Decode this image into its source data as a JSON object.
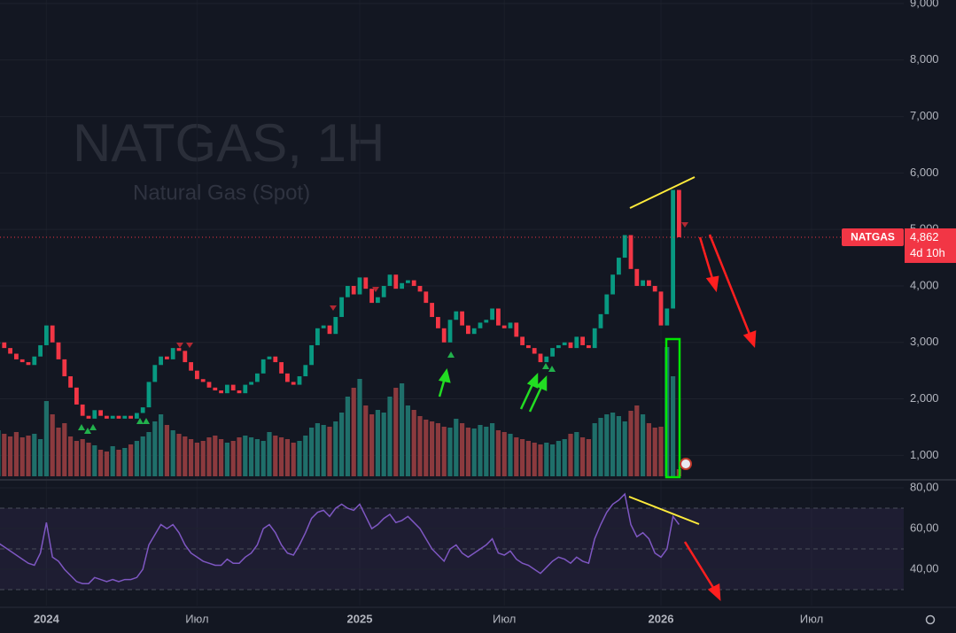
{
  "chart_data": [
    {
      "type": "candlestick",
      "title": "NATGAS, 1H",
      "subtitle": "Natural Gas (Spot)",
      "categories": [
        null,
        null,
        null,
        null,
        null,
        null,
        null,
        null,
        "2024",
        null,
        null,
        null,
        null,
        null,
        null,
        null,
        null,
        null,
        null,
        null,
        null,
        null,
        null,
        null,
        null,
        null,
        null,
        null,
        null,
        null,
        null,
        null,
        null,
        "Июл",
        null,
        null,
        null,
        null,
        null,
        null,
        null,
        null,
        null,
        null,
        null,
        null,
        null,
        null,
        null,
        null,
        null,
        null,
        null,
        null,
        null,
        null,
        null,
        null,
        null,
        null,
        "2025",
        null,
        null,
        null,
        null,
        null,
        null,
        null,
        null,
        null,
        null,
        null,
        null,
        null,
        null,
        null,
        null,
        null,
        null,
        null,
        null,
        null,
        null,
        null,
        "Июл",
        null,
        null,
        null,
        null,
        null,
        null,
        null,
        null,
        null,
        null,
        null,
        null,
        null,
        null,
        null,
        null,
        null,
        null,
        null,
        null,
        null,
        null,
        null,
        null,
        null,
        "2026",
        null,
        null,
        null,
        null,
        null,
        null,
        null,
        null,
        null,
        null,
        null,
        null,
        null,
        null,
        null,
        null,
        null,
        null,
        null,
        null,
        null,
        null,
        null,
        null,
        "Июл",
        null
      ],
      "series": [
        {
          "name": "NATGAS",
          "color": "#089981",
          "down_color": "#f23645",
          "values": [
            3000,
            2900,
            2800,
            2700,
            2650,
            2600,
            2750,
            2950,
            3300,
            3000,
            2700,
            2400,
            2200,
            1900,
            1700,
            1650,
            1800,
            1700,
            1650,
            1700,
            1650,
            1700,
            1650,
            1750,
            1850,
            2300,
            2600,
            2750,
            2700,
            2900,
            2850,
            2650,
            2500,
            2350,
            2300,
            2200,
            2150,
            2100,
            2250,
            2150,
            2100,
            2250,
            2300,
            2450,
            2700,
            2750,
            2650,
            2450,
            2300,
            2250,
            2400,
            2600,
            2950,
            3250,
            3300,
            3150,
            3450,
            3800,
            4000,
            3850,
            4150,
            3950,
            3700,
            3800,
            4000,
            4200,
            3950,
            4050,
            4100,
            4000,
            3900,
            3700,
            3450,
            3250,
            3000,
            3400,
            3550,
            3300,
            3150,
            3250,
            3350,
            3400,
            3600,
            3300,
            3250,
            3350,
            3100,
            2950,
            2900,
            2800,
            2650,
            2750,
            2900,
            2950,
            3000,
            2900,
            3100,
            2950,
            2900,
            3250,
            3500,
            3850,
            4200,
            4500,
            4900,
            4300,
            4000,
            4100,
            4000,
            3900,
            3300,
            3600,
            5700,
            4862,
            null,
            null,
            null,
            null,
            null,
            null,
            null,
            null,
            null,
            null,
            null,
            null,
            null,
            null,
            null,
            null,
            null,
            null,
            null,
            null,
            null,
            null,
            null
          ]
        },
        {
          "name": "Volume",
          "color": "#1f6f6a",
          "down_color": "#8b3a3e",
          "values": [
            52,
            48,
            45,
            50,
            44,
            46,
            48,
            42,
            85,
            70,
            55,
            60,
            45,
            40,
            42,
            38,
            35,
            30,
            28,
            34,
            30,
            32,
            36,
            40,
            45,
            50,
            62,
            70,
            58,
            52,
            48,
            45,
            42,
            38,
            40,
            44,
            46,
            42,
            38,
            40,
            44,
            46,
            44,
            42,
            40,
            50,
            46,
            44,
            42,
            38,
            40,
            46,
            55,
            60,
            58,
            56,
            62,
            72,
            90,
            100,
            110,
            80,
            70,
            75,
            72,
            90,
            100,
            105,
            80,
            75,
            68,
            64,
            62,
            60,
            56,
            55,
            65,
            60,
            55,
            54,
            58,
            56,
            60,
            52,
            50,
            48,
            44,
            42,
            40,
            38,
            36,
            38,
            36,
            40,
            42,
            48,
            50,
            44,
            42,
            60,
            66,
            70,
            72,
            68,
            62,
            74,
            80,
            70,
            60,
            55,
            56,
            146,
            113,
            8,
            null,
            null,
            null,
            null,
            null,
            null,
            null,
            null,
            null,
            null,
            null,
            null,
            null,
            null,
            null,
            null,
            null,
            null,
            null,
            null,
            null,
            null,
            null
          ]
        }
      ],
      "ylim": [
        629,
        9063
      ],
      "yticks": [
        {
          "value": 1000,
          "label": "1,000"
        },
        {
          "value": 2000,
          "label": "2,000"
        },
        {
          "value": 3000,
          "label": "3,000"
        },
        {
          "value": 4000,
          "label": "4,000"
        },
        {
          "value": 5000,
          "label": "5,000"
        },
        {
          "value": 6000,
          "label": "6,000"
        },
        {
          "value": 7000,
          "label": "7,000"
        },
        {
          "value": 8000,
          "label": "8,000"
        },
        {
          "value": 9000,
          "label": "9,000"
        }
      ],
      "volume_lim": [
        0,
        538
      ],
      "last_price": {
        "value": 4862,
        "label": "4,862"
      },
      "last_price_name": "NATGAS",
      "countdown": "4d 10h",
      "grid": true
    },
    {
      "type": "line",
      "series": [
        {
          "name": "RSI",
          "color": "#7e57c2",
          "values": [
            53,
            51,
            49,
            47,
            45,
            43,
            42,
            48,
            63,
            46,
            44,
            40,
            37,
            34,
            33,
            33,
            36,
            35,
            34,
            35,
            34,
            35,
            35,
            36,
            40,
            52,
            57,
            62,
            60,
            62,
            58,
            52,
            48,
            46,
            44,
            43,
            42,
            42,
            45,
            43,
            43,
            46,
            48,
            52,
            60,
            62,
            58,
            52,
            48,
            47,
            52,
            58,
            65,
            68,
            69,
            66,
            70,
            72,
            70,
            69,
            72,
            66,
            60,
            62,
            65,
            67,
            63,
            64,
            66,
            63,
            60,
            55,
            50,
            47,
            44,
            50,
            52,
            48,
            46,
            48,
            50,
            52,
            55,
            48,
            47,
            49,
            45,
            43,
            42,
            40,
            38,
            41,
            44,
            46,
            45,
            43,
            46,
            44,
            43,
            55,
            62,
            68,
            72,
            74,
            77,
            62,
            56,
            58,
            55,
            48,
            46,
            50,
            66,
            62,
            null,
            null,
            null,
            null,
            null,
            null,
            null,
            null,
            null,
            null,
            null,
            null,
            null,
            null,
            null,
            null,
            null,
            null,
            null,
            null,
            null,
            null,
            null
          ]
        }
      ],
      "ylim": [
        22.2,
        82.2
      ],
      "yticks": [
        {
          "value": 40,
          "label": "40,00"
        },
        {
          "value": 60,
          "label": "60,00"
        },
        {
          "value": 80,
          "label": "80,00"
        }
      ],
      "levels": [
        30,
        50,
        70
      ],
      "band_color": "#7e57c2"
    }
  ]
}
